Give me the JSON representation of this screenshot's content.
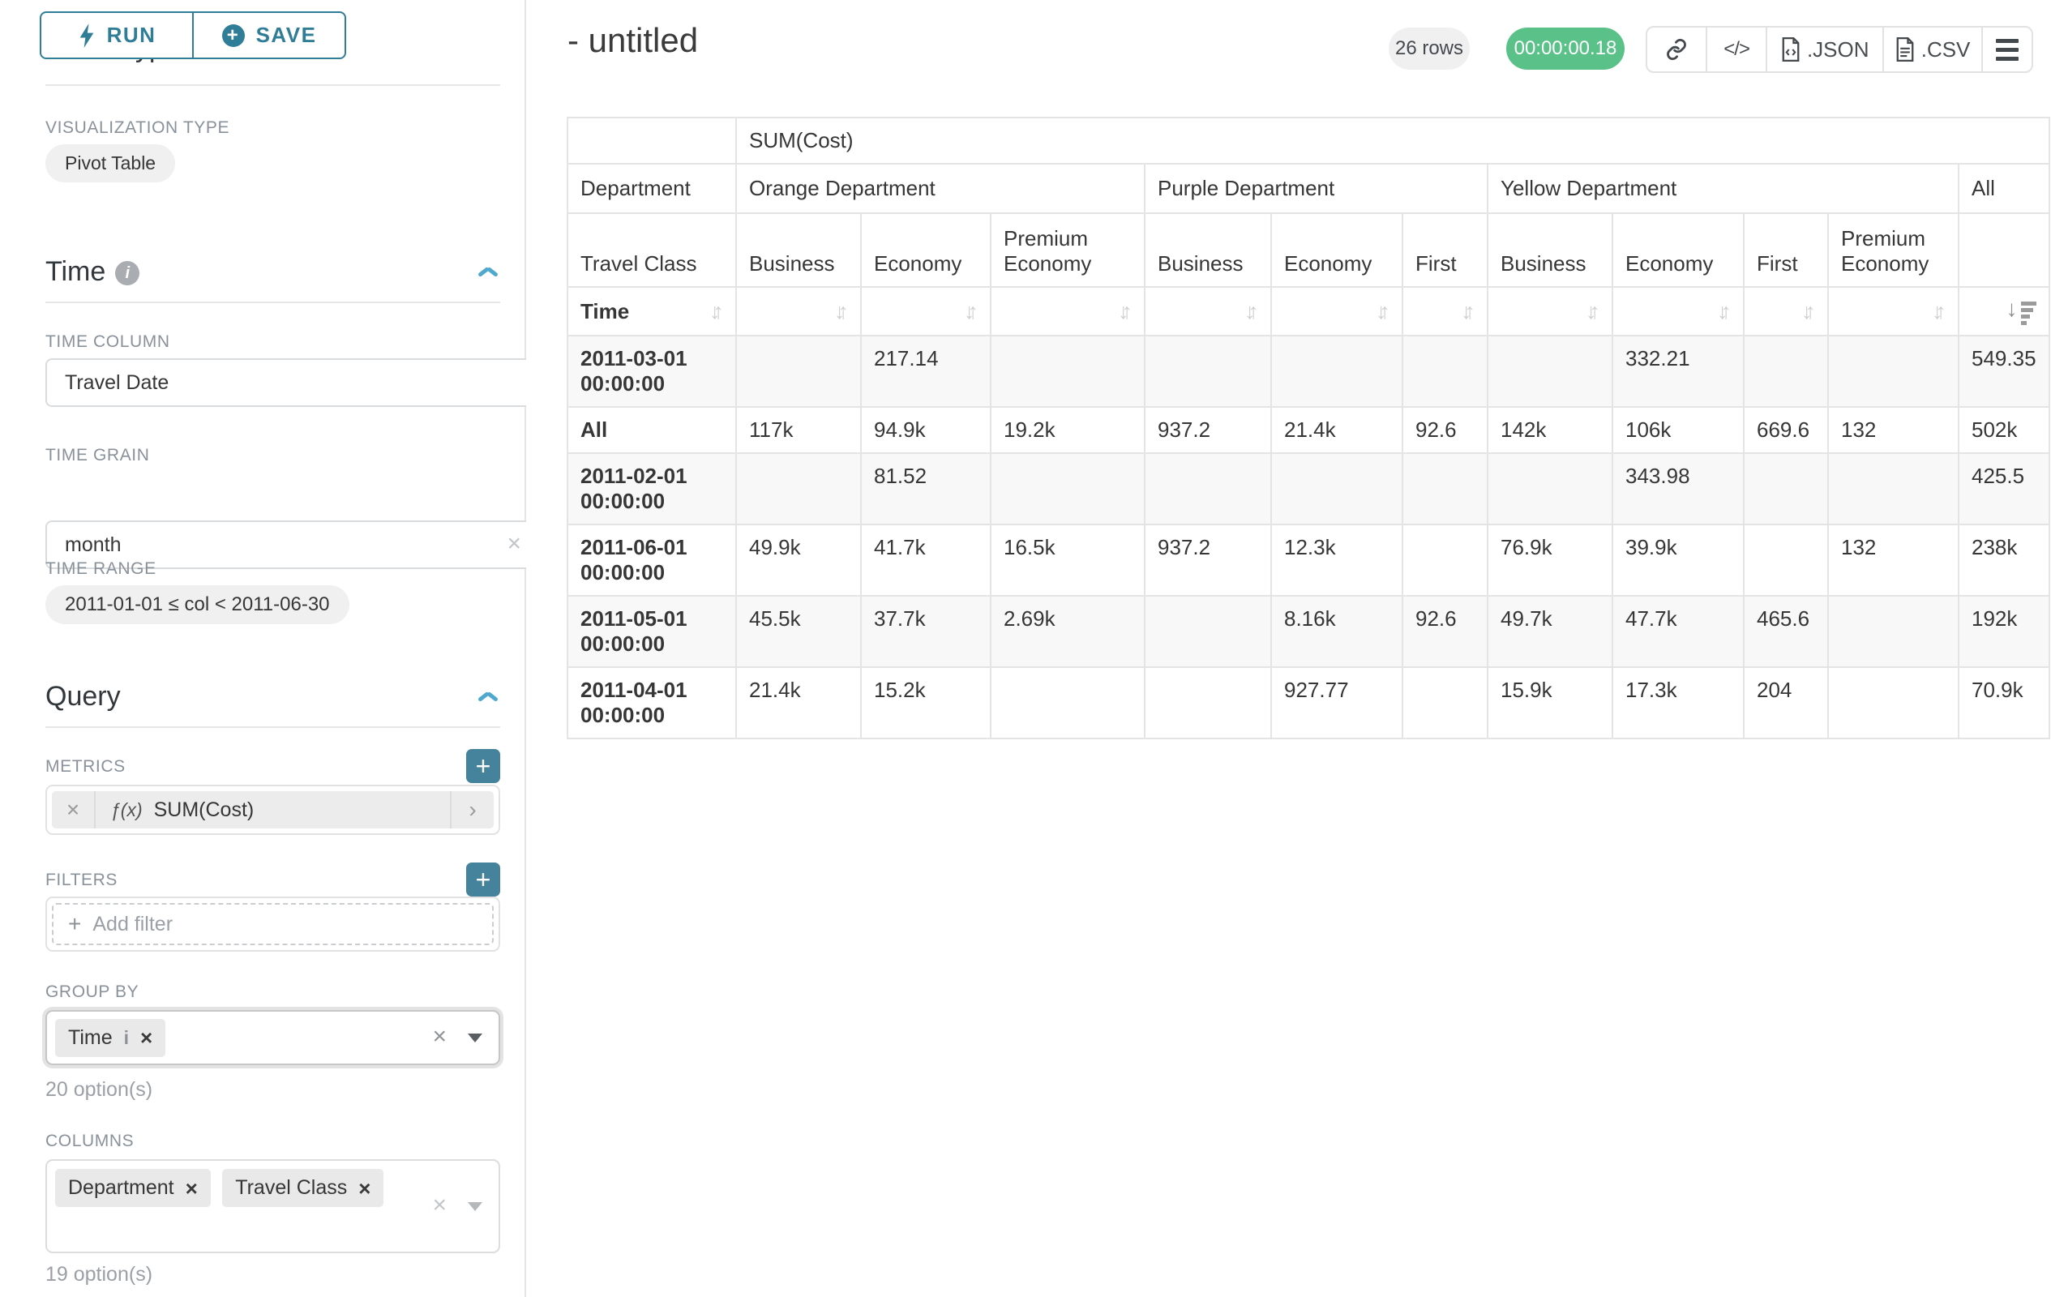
{
  "sidebar": {
    "run_label": "RUN",
    "save_label": "SAVE",
    "chart_type_heading": "Chart Type",
    "visualization_type_label": "VISUALIZATION TYPE",
    "visualization_type_value": "Pivot Table",
    "time_section": {
      "title": "Time",
      "time_column_label": "TIME COLUMN",
      "time_column_value": "Travel Date",
      "time_grain_label": "TIME GRAIN",
      "time_grain_value": "month",
      "time_range_label": "TIME RANGE",
      "time_range_value": "2011-01-01 ≤ col < 2011-06-30"
    },
    "query_section": {
      "title": "Query",
      "metrics_label": "METRICS",
      "metric_fx": "ƒ(x)",
      "metric_value": "SUM(Cost)",
      "filters_label": "FILTERS",
      "add_filter_label": "Add filter",
      "group_by_label": "GROUP BY",
      "group_by_chips": [
        "Time"
      ],
      "group_by_hint": "20 option(s)",
      "columns_label": "COLUMNS",
      "columns_chips": [
        "Department",
        "Travel Class"
      ],
      "columns_hint": "19 option(s)"
    }
  },
  "header": {
    "title": "- untitled",
    "rows_badge": "26 rows",
    "timer_badge": "00:00:00.18",
    "code_glyph": "</>",
    "json_label": ".JSON",
    "csv_label": ".CSV"
  },
  "table": {
    "metric_header": "SUM(Cost)",
    "department_label": "Department",
    "travel_class_label": "Travel Class",
    "time_label": "Time",
    "groups": [
      {
        "name": "Orange Department",
        "cols": [
          "Business",
          "Economy",
          "Premium Economy"
        ]
      },
      {
        "name": "Purple Department",
        "cols": [
          "Business",
          "Economy",
          "First"
        ]
      },
      {
        "name": "Yellow Department",
        "cols": [
          "Business",
          "Economy",
          "First",
          "Premium Economy"
        ]
      },
      {
        "name": "All",
        "cols": [
          ""
        ]
      }
    ],
    "rows": [
      {
        "label": "2011-03-01 00:00:00",
        "stripe": true,
        "values": [
          "",
          "217.14",
          "",
          "",
          "",
          "",
          "",
          "332.21",
          "",
          "",
          "549.35"
        ]
      },
      {
        "label": "All",
        "stripe": false,
        "values": [
          "117k",
          "94.9k",
          "19.2k",
          "937.2",
          "21.4k",
          "92.6",
          "142k",
          "106k",
          "669.6",
          "132",
          "502k"
        ]
      },
      {
        "label": "2011-02-01 00:00:00",
        "stripe": true,
        "values": [
          "",
          "81.52",
          "",
          "",
          "",
          "",
          "",
          "343.98",
          "",
          "",
          "425.5"
        ]
      },
      {
        "label": "2011-06-01 00:00:00",
        "stripe": false,
        "values": [
          "49.9k",
          "41.7k",
          "16.5k",
          "937.2",
          "12.3k",
          "",
          "76.9k",
          "39.9k",
          "",
          "132",
          "238k"
        ]
      },
      {
        "label": "2011-05-01 00:00:00",
        "stripe": true,
        "values": [
          "45.5k",
          "37.7k",
          "2.69k",
          "",
          "8.16k",
          "92.6",
          "49.7k",
          "47.7k",
          "465.6",
          "",
          "192k"
        ]
      },
      {
        "label": "2011-04-01 00:00:00",
        "stripe": false,
        "values": [
          "21.4k",
          "15.2k",
          "",
          "",
          "927.77",
          "",
          "15.9k",
          "17.3k",
          "204",
          "",
          "70.9k"
        ]
      }
    ]
  },
  "colors": {
    "accent_teal": "#2f7d96",
    "plus_button_teal": "#45829b",
    "chevron_blue": "#4fa8cd",
    "timer_green": "#5ac189",
    "label_gray": "#89919b",
    "border_gray": "#e4e4e4",
    "stripe_gray": "#f8f8f8"
  }
}
